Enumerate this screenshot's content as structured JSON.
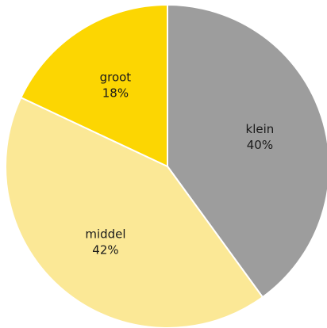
{
  "chart_data": {
    "type": "pie",
    "title": "",
    "start": "12 o'clock",
    "direction": "clockwise",
    "slices": [
      {
        "label": "klein",
        "value": 40,
        "value_label": "40%",
        "color": "#9d9d9d"
      },
      {
        "label": "middel",
        "value": 42,
        "value_label": "42%",
        "color": "#fbe896"
      },
      {
        "label": "groot",
        "value": 18,
        "value_label": "18%",
        "color": "#fcd602"
      }
    ]
  }
}
